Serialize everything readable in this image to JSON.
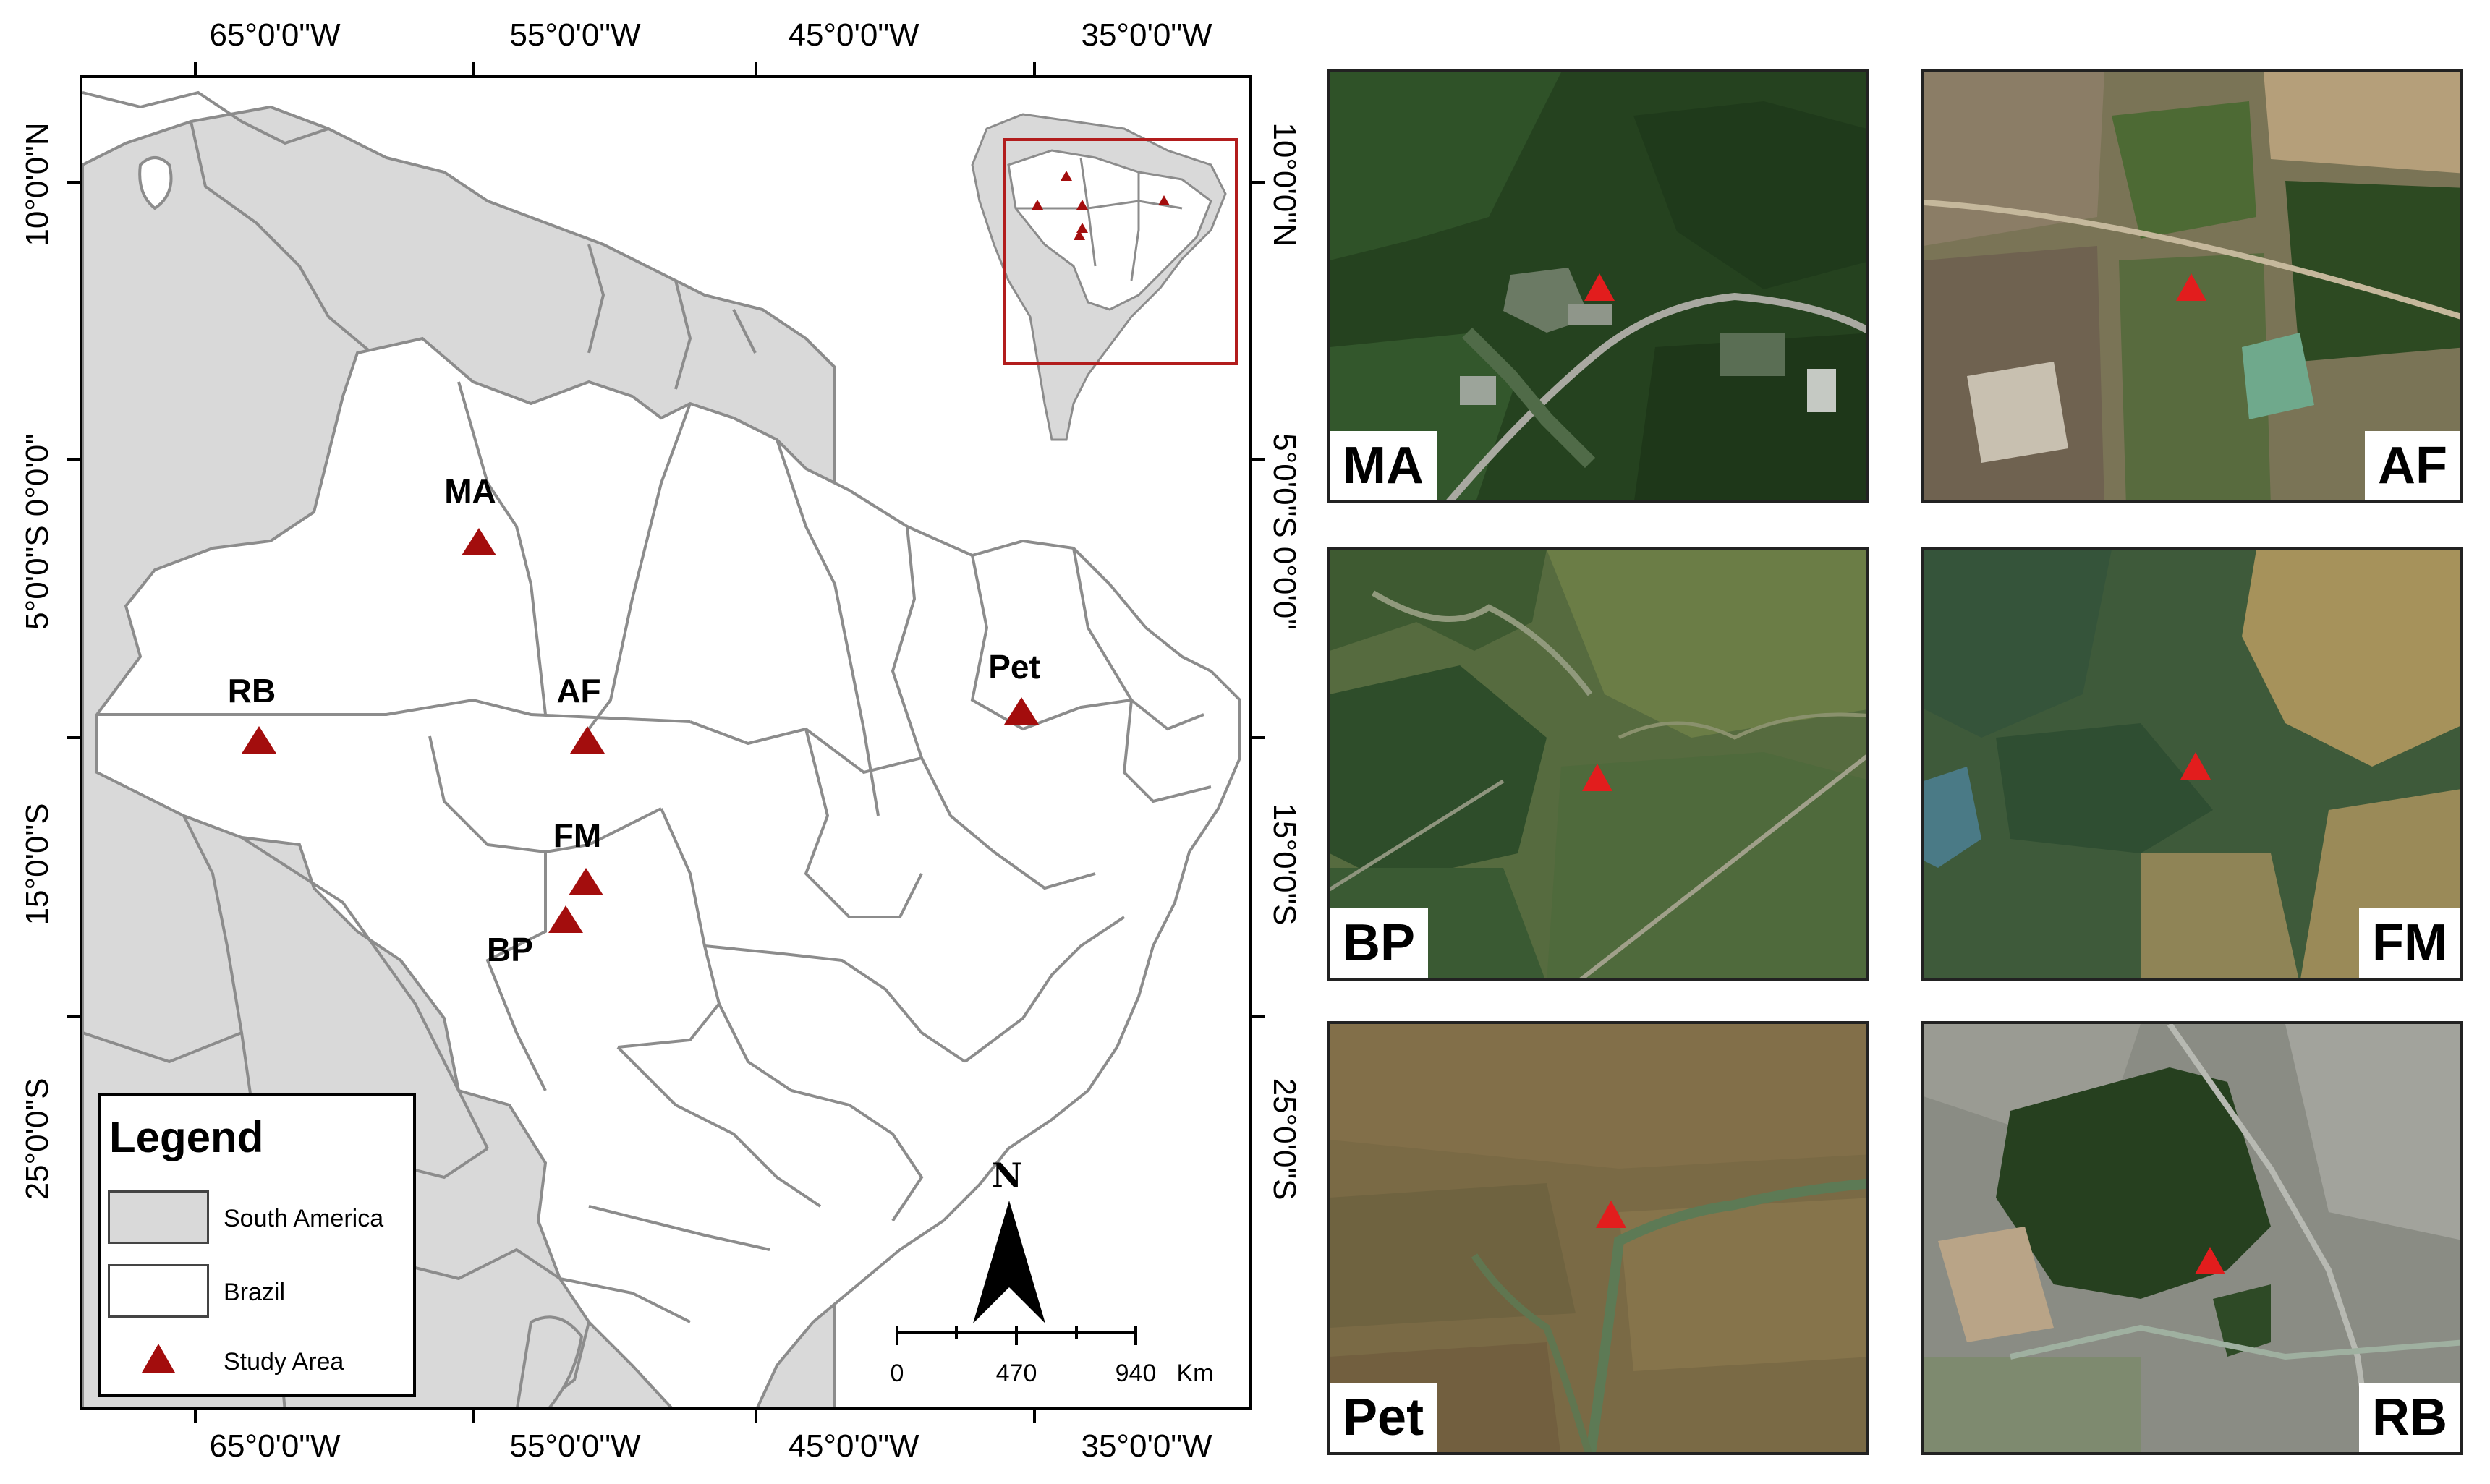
{
  "map": {
    "lon_ticks": [
      "65°0'0\"W",
      "55°0'0\"W",
      "45°0'0\"W",
      "35°0'0\"W"
    ],
    "lat_ticks": [
      "10°0'0\"N",
      "5°0'0\"S 0°0'0\"",
      "15°0'0\"S",
      "25°0'0\"S"
    ],
    "lat_ticks_right": [
      "10°0'0\"N",
      "5°0'0\"S 0°0'0\"",
      "15°0'0\"S",
      "25°0'0\"S"
    ],
    "sites": [
      {
        "code": "MA"
      },
      {
        "code": "RB"
      },
      {
        "code": "AF"
      },
      {
        "code": "Pet"
      },
      {
        "code": "FM"
      },
      {
        "code": "BP"
      }
    ],
    "colors": {
      "south_america": "#d9d9d9",
      "brazil": "#ffffff",
      "border": "#8c8c8c",
      "marker": "#a30d0d",
      "inset_box": "#b21d1d"
    }
  },
  "legend": {
    "title": "Legend",
    "items": [
      {
        "label": "South America",
        "symbol": "gray-box"
      },
      {
        "label": "Brazil",
        "symbol": "white-box"
      },
      {
        "label": "Study Area",
        "symbol": "red-triangle"
      }
    ]
  },
  "scale_bar": {
    "labels": [
      "0",
      "470",
      "940"
    ],
    "unit": "Km"
  },
  "north_arrow": {
    "label": "N"
  },
  "panels": [
    {
      "code": "MA",
      "label_side": "left"
    },
    {
      "code": "AF",
      "label_side": "right"
    },
    {
      "code": "BP",
      "label_side": "left"
    },
    {
      "code": "FM",
      "label_side": "right"
    },
    {
      "code": "Pet",
      "label_side": "left"
    },
    {
      "code": "RB",
      "label_side": "right"
    }
  ]
}
